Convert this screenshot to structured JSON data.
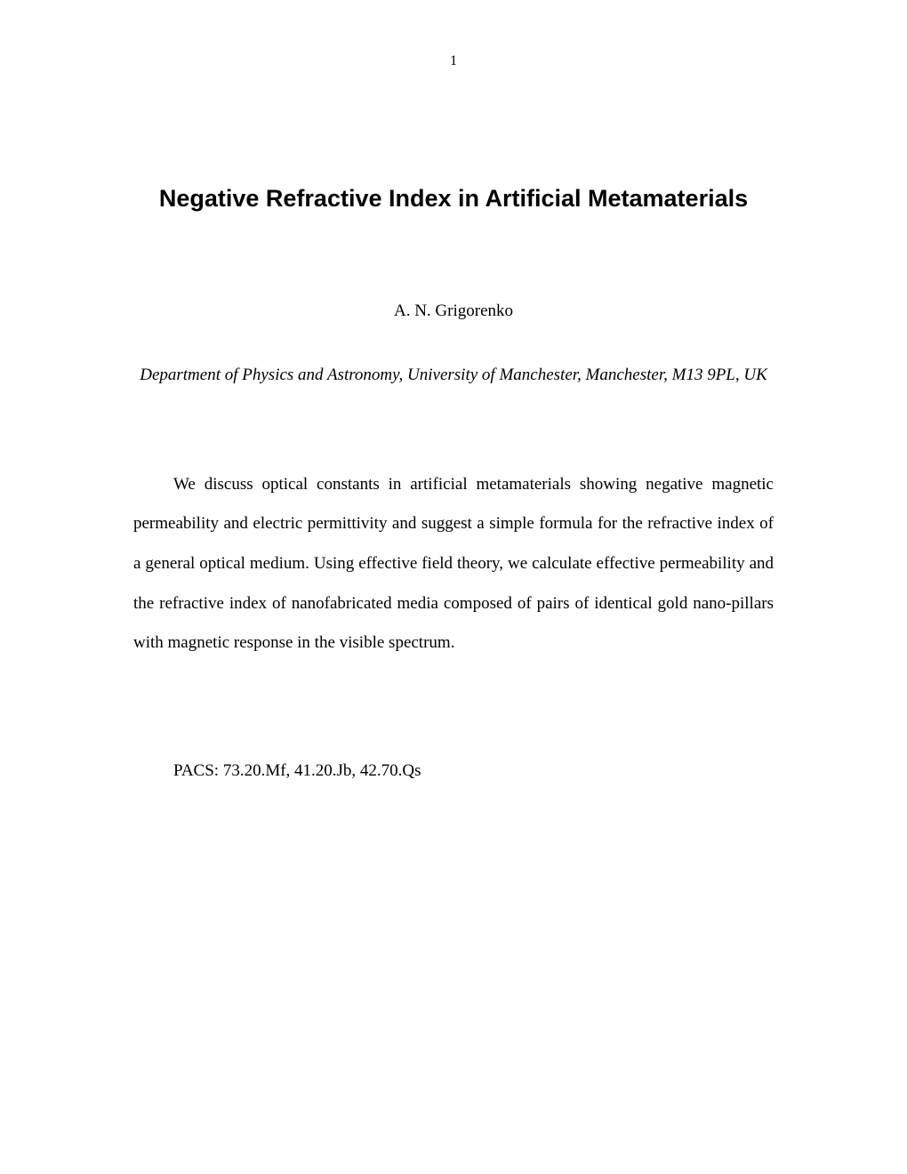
{
  "page_number": "1",
  "title": "Negative Refractive Index in Artificial Metamaterials",
  "author": "A. N. Grigorenko",
  "affiliation": "Department of Physics and Astronomy, University of Manchester, Manchester, M13 9PL, UK",
  "abstract": "We discuss optical constants in artificial metamaterials showing negative magnetic permeability and electric permittivity and suggest a simple formula for the refractive index of a general optical medium. Using effective field theory, we calculate effective permeability and the refractive index of nanofabricated media composed of pairs of identical gold nano-pillars with magnetic response in the visible spectrum.",
  "pacs": "PACS: 73.20.Mf, 41.20.Jb, 42.70.Qs",
  "colors": {
    "background": "#ffffff",
    "text": "#000000"
  },
  "fonts": {
    "title_family": "Arial",
    "body_family": "Times New Roman",
    "title_size_pt": 20,
    "body_size_pt": 14
  }
}
